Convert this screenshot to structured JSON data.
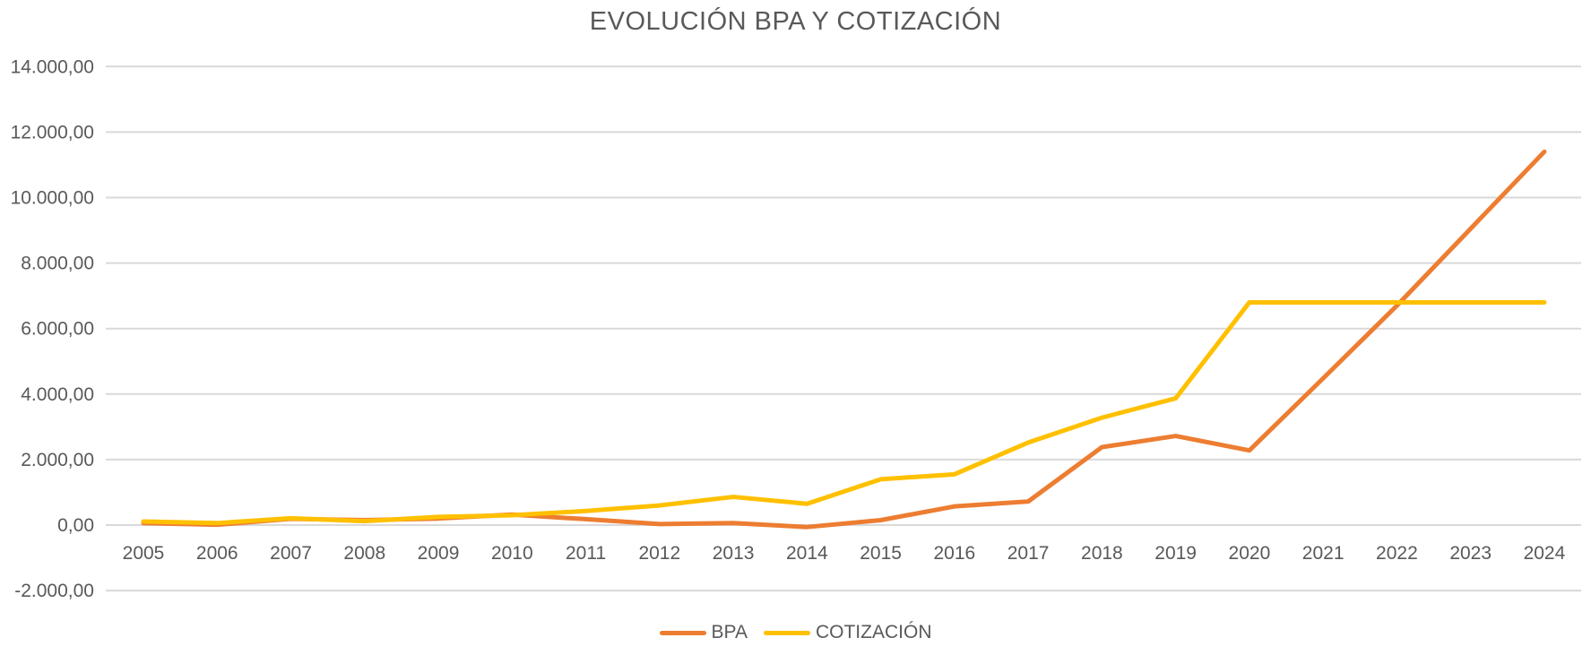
{
  "chart_data": {
    "type": "line",
    "title": "EVOLUCIÓN BPA Y COTIZACIÓN",
    "categories": [
      "2005",
      "2006",
      "2007",
      "2008",
      "2009",
      "2010",
      "2011",
      "2012",
      "2013",
      "2014",
      "2015",
      "2016",
      "2017",
      "2018",
      "2019",
      "2020",
      "2021",
      "2022",
      "2023",
      "2024"
    ],
    "series": [
      {
        "name": "BPA",
        "color": "#ED7D31",
        "values": [
          60,
          10,
          190,
          150,
          200,
          320,
          180,
          30,
          60,
          -60,
          150,
          570,
          720,
          2380,
          2720,
          2280,
          4480,
          6700,
          9050,
          11400
        ]
      },
      {
        "name": "COTIZACIÓN",
        "color": "#FFC000",
        "values": [
          110,
          60,
          210,
          120,
          250,
          300,
          430,
          600,
          860,
          650,
          1400,
          1550,
          2520,
          3280,
          3870,
          6800,
          6800,
          6800,
          6800,
          6800
        ]
      }
    ],
    "ylim": [
      -2000,
      14000
    ],
    "y_tick_interval": 2000,
    "y_tick_values": [
      14000,
      12000,
      10000,
      8000,
      6000,
      4000,
      2000,
      0,
      -2000
    ],
    "y_tick_labels": [
      "14.000,00",
      "12.000,00",
      "10.000,00",
      "8.000,00",
      "6.000,00",
      "4.000,00",
      "2.000,00",
      "0,00",
      "-2.000,00"
    ],
    "grid": true,
    "legend_position": "bottom",
    "colors": {
      "grid": "#D9D9D9",
      "text": "#595959",
      "background": "#FFFFFF"
    }
  }
}
